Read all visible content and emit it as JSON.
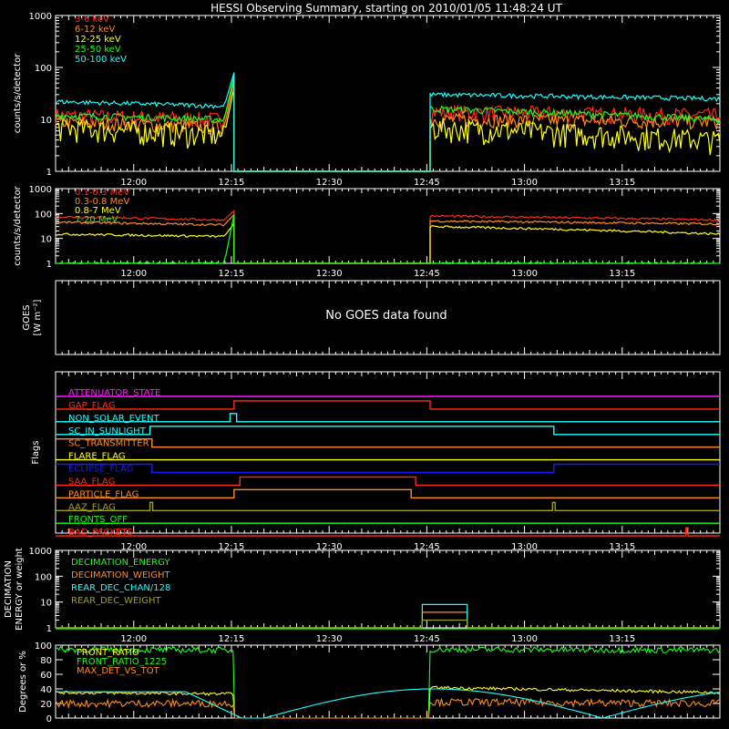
{
  "title": "HESSI Observing Summary, starting on 2010/01/05 11:48:24 UT",
  "time_ticks": [
    "12:00",
    "12:15",
    "12:30",
    "12:45",
    "13:00",
    "13:15"
  ],
  "time_tick_minutes": [
    12,
    27,
    42,
    57,
    72,
    87
  ],
  "x_range_minutes": [
    0,
    102
  ],
  "colors": {
    "red": "#ff2a1a",
    "orange": "#ff8c1a",
    "yellow": "#ffff1a",
    "green": "#1aff1a",
    "cyan": "#1affff",
    "magenta": "#ff1aff",
    "blue": "#1a1aff",
    "olive": "#a0a020",
    "white": "#ffffff",
    "background": "#000000"
  },
  "chart_data": [
    {
      "type": "line",
      "panel": "counts_low",
      "ylabel": "counts/s/detector",
      "yscale": "log",
      "ylim": [
        1,
        1000
      ],
      "yticks": [
        "1",
        "10",
        "100",
        "1000"
      ],
      "series": [
        {
          "name": "3-6 keV",
          "color": "#ff2a1a",
          "pre": [
            12,
            10
          ],
          "post": [
            14,
            12
          ],
          "peak": 60,
          "noise": 0.35
        },
        {
          "name": "6-12 keV",
          "color": "#ff8c1a",
          "pre": [
            9,
            7
          ],
          "post": [
            10,
            9
          ],
          "peak": 55,
          "noise": 0.3
        },
        {
          "name": "12-25 keV",
          "color": "#ffff1a",
          "pre": [
            7,
            5
          ],
          "post": [
            7,
            4
          ],
          "peak": 40,
          "noise": 0.5
        },
        {
          "name": "25-50 keV",
          "color": "#1aff1a",
          "pre": [
            12,
            10
          ],
          "post": [
            16,
            10
          ],
          "peak": 70,
          "noise": 0.15
        },
        {
          "name": "50-100 keV",
          "color": "#1affff",
          "pre": [
            22,
            18
          ],
          "post": [
            30,
            25
          ],
          "peak": 80,
          "noise": 0.1
        }
      ],
      "data_gap_minutes": [
        27.4,
        57.5
      ]
    },
    {
      "type": "line",
      "panel": "counts_high",
      "ylabel": "counts/s/detector",
      "yscale": "log",
      "ylim": [
        1,
        1000
      ],
      "yticks": [
        "1",
        "10",
        "100",
        "1000"
      ],
      "series": [
        {
          "name": "0.1-0.3 MeV",
          "color": "#ff2a1a",
          "pre": [
            75,
            55
          ],
          "post": [
            80,
            55
          ],
          "peak": 130
        },
        {
          "name": "0.3-0.8 MeV",
          "color": "#ff8c1a",
          "pre": [
            45,
            35
          ],
          "post": [
            50,
            38
          ],
          "peak": 90
        },
        {
          "name": "0.8-7 MeV",
          "color": "#ffff1a",
          "pre": [
            15,
            12
          ],
          "post": [
            30,
            15
          ],
          "peak": 40
        },
        {
          "name": "7-20 MeV",
          "color": "#1aff1a",
          "pre": [
            1,
            1
          ],
          "post": [
            1,
            1
          ],
          "peak": 90
        }
      ]
    },
    {
      "type": "line",
      "panel": "goes",
      "ylabel": "GOES",
      "yunit": "[W m⁻²]",
      "message": "No GOES data found",
      "series": []
    },
    {
      "type": "line",
      "panel": "flags",
      "ylabel": "Flags",
      "series": [
        {
          "name": "ATTENUATOR_STATE",
          "color": "#ff1aff",
          "segments": [
            [
              0,
              102,
              0
            ]
          ]
        },
        {
          "name": "GAP_FLAG",
          "color": "#ff2a1a",
          "segments": [
            [
              0,
              27.4,
              0
            ],
            [
              27.4,
              57.5,
              1
            ],
            [
              57.5,
              102,
              0
            ]
          ]
        },
        {
          "name": "NON_SOLAR_EVENT",
          "color": "#1affff",
          "segments": [
            [
              0,
              26.8,
              0
            ],
            [
              26.8,
              27.8,
              1
            ],
            [
              27.8,
              102,
              0
            ]
          ]
        },
        {
          "name": "SC_IN_SUNLIGHT",
          "color": "#1affff",
          "segments": [
            [
              0,
              14.5,
              0
            ],
            [
              14.5,
              76.5,
              1
            ],
            [
              76.5,
              102,
              0
            ]
          ]
        },
        {
          "name": "SC_TRANSMITTER",
          "color": "#ff8c1a",
          "segments": [
            [
              0,
              14.8,
              1
            ],
            [
              14.8,
              102,
              0
            ]
          ]
        },
        {
          "name": "FLARE_FLAG",
          "color": "#ffff1a",
          "segments": [
            [
              0,
              102,
              0
            ]
          ]
        },
        {
          "name": "ECLIPSE_FLAG",
          "color": "#1a1aff",
          "segments": [
            [
              0,
              14.8,
              1
            ],
            [
              14.8,
              76.5,
              0
            ],
            [
              76.5,
              102,
              1
            ]
          ]
        },
        {
          "name": "SAA_FLAG",
          "color": "#ff2a1a",
          "segments": [
            [
              0,
              28.3,
              0
            ],
            [
              28.3,
              55.3,
              1
            ],
            [
              55.3,
              102,
              0
            ]
          ]
        },
        {
          "name": "PARTICLE_FLAG",
          "color": "#ff8c1a",
          "segments": [
            [
              0,
              27.4,
              0
            ],
            [
              27.4,
              54.6,
              1
            ],
            [
              54.6,
              102,
              0
            ]
          ]
        },
        {
          "name": "AAZ_FLAG",
          "color": "#a0a020",
          "segments": [
            [
              0,
              14.5,
              0
            ],
            [
              14.5,
              14.9,
              1
            ],
            [
              14.9,
              76.3,
              0
            ],
            [
              76.3,
              76.7,
              1
            ],
            [
              76.7,
              102,
              0
            ]
          ]
        },
        {
          "name": "FRONTS_OFF",
          "color": "#1aff1a",
          "segments": [
            [
              0,
              102,
              0
            ]
          ]
        },
        {
          "name": "BAD_PACKETS",
          "color": "#ff2a1a",
          "segments": [
            [
              0,
              96.8,
              0
            ],
            [
              96.8,
              97.1,
              1
            ],
            [
              97.1,
              102,
              0
            ]
          ]
        }
      ]
    },
    {
      "type": "line",
      "panel": "decimation",
      "ylabel": "DECIMATION ENERGY or weight",
      "yscale": "log",
      "ylim": [
        1,
        1000
      ],
      "yticks": [
        "1",
        "10",
        "100",
        "1000"
      ],
      "series": [
        {
          "name": "DECIMATION_ENERGY",
          "color": "#1aff1a",
          "steps": [
            [
              0,
              102,
              0
            ]
          ]
        },
        {
          "name": "DECIMATION_WEIGHT",
          "color": "#ff8c1a",
          "steps": [
            [
              0,
              56.3,
              1
            ],
            [
              56.3,
              63.2,
              4
            ],
            [
              63.2,
              102,
              1
            ]
          ]
        },
        {
          "name": "REAR_DEC_CHAN/128",
          "color": "#1affff",
          "steps": [
            [
              0,
              56.3,
              1
            ],
            [
              56.3,
              63.2,
              8
            ],
            [
              63.2,
              102,
              1
            ]
          ]
        },
        {
          "name": "REAR_DEC_WEIGHT",
          "color": "#a0a020",
          "steps": [
            [
              0,
              56.3,
              1
            ],
            [
              56.3,
              63.2,
              2
            ],
            [
              63.2,
              102,
              1
            ]
          ]
        }
      ]
    },
    {
      "type": "line",
      "panel": "ratios",
      "ylabel": "Degrees or %",
      "ylim": [
        0,
        100
      ],
      "yticks": [
        "0",
        "20",
        "40",
        "60",
        "80",
        "100"
      ],
      "series": [
        {
          "name": "FRONT_RATIO",
          "color": "#ffff1a",
          "pre": [
            35,
            33
          ],
          "post": [
            42,
            35
          ],
          "noise": 2
        },
        {
          "name": "FRONT_RATIO_1225",
          "color": "#1aff1a",
          "pre": [
            94,
            93
          ],
          "post": [
            94,
            93
          ],
          "noise": 4
        },
        {
          "name": "MAX_DET_VS_TOT",
          "color": "#ff8c1a",
          "pre": [
            20,
            20
          ],
          "post": [
            22,
            20
          ],
          "noise": 5
        },
        {
          "name": "",
          "color": "#1affff",
          "curve": "arc",
          "peak": 40,
          "low": 0
        }
      ]
    }
  ]
}
